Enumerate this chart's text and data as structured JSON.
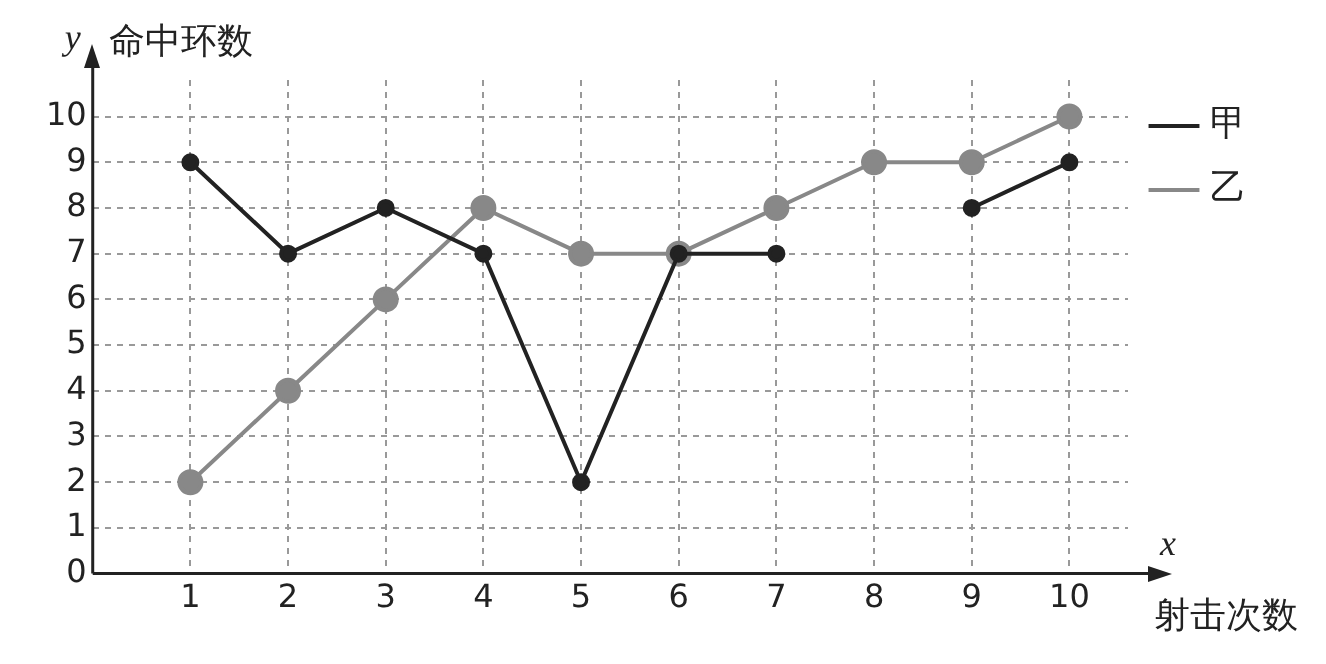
{
  "chart_data": {
    "type": "line",
    "xlabel": "射击次数",
    "ylabel": "命中环数",
    "annotations": [
      "y",
      "x"
    ],
    "x": [
      1,
      2,
      3,
      4,
      5,
      6,
      7,
      8,
      9,
      10
    ],
    "series": [
      {
        "name": "甲",
        "color": "#222222",
        "values": [
          9,
          7,
          8,
          7,
          2,
          7,
          7,
          null,
          8,
          9
        ]
      },
      {
        "name": "乙",
        "color": "#888888",
        "values": [
          2,
          4,
          6,
          8,
          7,
          7,
          8,
          9,
          9,
          10
        ]
      }
    ],
    "xlim": [
      0,
      10.6
    ],
    "xticks": [
      1,
      2,
      3,
      4,
      5,
      6,
      7,
      8,
      9,
      10
    ],
    "ylim": [
      0,
      10.8
    ],
    "yticks": [
      0,
      1,
      2,
      3,
      4,
      5,
      6,
      7,
      8,
      9,
      10
    ],
    "grid": true,
    "legend": "top right",
    "marker": "circle",
    "line_style": "solid"
  }
}
